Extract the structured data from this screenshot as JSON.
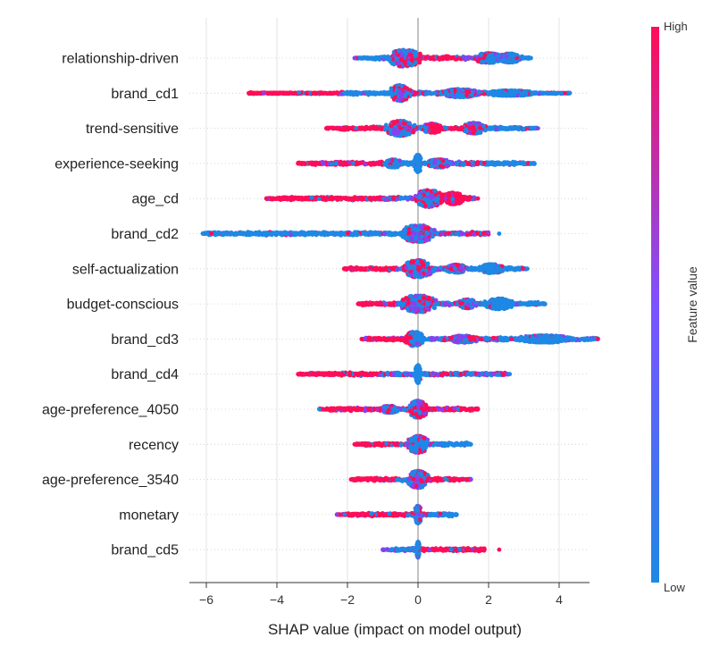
{
  "chart_data": {
    "type": "scatter",
    "xlabel": "SHAP value (impact on model output)",
    "xlim": [
      -6.5,
      5.4
    ],
    "xticks": [
      -6,
      -4,
      -2,
      0,
      2,
      4
    ],
    "grid": true,
    "colorbar": {
      "label": "Feature value",
      "high_label": "High",
      "low_label": "Low",
      "low_color": "#1E88E5",
      "high_color": "#FF0D57"
    },
    "features": [
      {
        "name": "relationship-driven",
        "min": -1.8,
        "max": 3.2,
        "core_left": -1.3,
        "core_right": 3.0,
        "segments": [
          [
            -1.8,
            -0.8,
            "blue"
          ],
          [
            -0.8,
            -0.1,
            "mix"
          ],
          [
            0.0,
            1.1,
            "pink"
          ],
          [
            1.1,
            1.8,
            "mix"
          ],
          [
            1.8,
            3.2,
            "blue"
          ]
        ],
        "blobs": [
          [
            -0.4,
            0.55,
            19
          ],
          [
            2.0,
            0.45,
            11
          ],
          [
            2.6,
            0.35,
            10
          ]
        ]
      },
      {
        "name": "brand_cd1",
        "min": -4.8,
        "max": 4.3,
        "core_left": -2.3,
        "core_right": 3.2,
        "segments": [
          [
            -4.8,
            -2.1,
            "pink"
          ],
          [
            -2.1,
            -0.7,
            "blue"
          ],
          [
            -0.7,
            0.6,
            "mix"
          ],
          [
            0.6,
            1.9,
            "mix"
          ],
          [
            1.9,
            4.3,
            "blue"
          ]
        ],
        "blobs": [
          [
            -0.5,
            0.35,
            18
          ],
          [
            1.2,
            0.6,
            9
          ],
          [
            2.6,
            0.8,
            6
          ]
        ]
      },
      {
        "name": "trend-sensitive",
        "min": -2.6,
        "max": 3.4,
        "core_left": -2.2,
        "core_right": 3.0,
        "segments": [
          [
            -2.6,
            -1.1,
            "pink"
          ],
          [
            -1.1,
            0.3,
            "mix"
          ],
          [
            0.3,
            1.3,
            "pink"
          ],
          [
            1.3,
            2.0,
            "mix"
          ],
          [
            2.0,
            3.4,
            "blue"
          ]
        ],
        "blobs": [
          [
            -0.5,
            0.45,
            17
          ],
          [
            0.4,
            0.35,
            10
          ],
          [
            1.6,
            0.4,
            12
          ]
        ]
      },
      {
        "name": "experience-seeking",
        "min": -3.4,
        "max": 3.3,
        "core_left": -3.1,
        "core_right": 3.0,
        "segments": [
          [
            -3.4,
            -1.0,
            "pink"
          ],
          [
            -1.0,
            -0.2,
            "blue"
          ],
          [
            -0.2,
            0.2,
            "blue"
          ],
          [
            0.3,
            1.8,
            "mix"
          ],
          [
            1.8,
            3.3,
            "blue"
          ]
        ],
        "blobs": [
          [
            0.0,
            0.12,
            20
          ],
          [
            -0.7,
            0.3,
            9
          ],
          [
            0.6,
            0.4,
            9
          ]
        ]
      },
      {
        "name": "age_cd",
        "min": -4.3,
        "max": 1.7,
        "core_left": -4.0,
        "core_right": 1.6,
        "segments": [
          [
            -4.3,
            -1.0,
            "pink"
          ],
          [
            -1.0,
            -0.1,
            "mix"
          ],
          [
            -0.1,
            0.6,
            "mix"
          ],
          [
            0.6,
            1.7,
            "pink"
          ]
        ],
        "blobs": [
          [
            0.3,
            0.45,
            19
          ],
          [
            1.0,
            0.35,
            13
          ]
        ]
      },
      {
        "name": "brand_cd2",
        "min": -6.1,
        "max": 2.3,
        "core_left": -6.0,
        "core_right": 2.0,
        "segments": [
          [
            -6.1,
            -1.4,
            "blue"
          ],
          [
            -1.4,
            -0.3,
            "blue"
          ],
          [
            -0.3,
            0.6,
            "mix"
          ],
          [
            0.6,
            2.0,
            "mix"
          ]
        ],
        "blobs": [
          [
            0.0,
            0.55,
            19
          ]
        ]
      },
      {
        "name": "self-actualization",
        "min": -2.1,
        "max": 3.1,
        "core_left": -2.0,
        "core_right": 3.0,
        "segments": [
          [
            -2.1,
            -0.6,
            "pink"
          ],
          [
            -0.6,
            0.4,
            "mix"
          ],
          [
            0.4,
            1.5,
            "mix"
          ],
          [
            1.5,
            3.1,
            "blue"
          ]
        ],
        "blobs": [
          [
            0.0,
            0.5,
            19
          ],
          [
            1.1,
            0.35,
            9
          ],
          [
            2.1,
            0.4,
            10
          ]
        ]
      },
      {
        "name": "budget-conscious",
        "min": -1.7,
        "max": 3.6,
        "core_left": -1.6,
        "core_right": 3.5,
        "segments": [
          [
            -1.7,
            -0.6,
            "pink"
          ],
          [
            -0.6,
            0.3,
            "mix"
          ],
          [
            0.3,
            1.7,
            "mix"
          ],
          [
            1.7,
            3.6,
            "blue"
          ]
        ],
        "blobs": [
          [
            0.0,
            0.6,
            19
          ],
          [
            1.4,
            0.3,
            10
          ],
          [
            2.3,
            0.45,
            12
          ]
        ]
      },
      {
        "name": "brand_cd3",
        "min": -1.6,
        "max": 5.1,
        "core_left": -1.5,
        "core_right": 5.0,
        "segments": [
          [
            -1.6,
            -0.2,
            "pink"
          ],
          [
            -0.2,
            0.3,
            "blue"
          ],
          [
            0.3,
            2.3,
            "mix"
          ],
          [
            2.3,
            5.1,
            "blue"
          ]
        ],
        "blobs": [
          [
            -0.1,
            0.3,
            16
          ],
          [
            1.3,
            0.5,
            8
          ],
          [
            3.6,
            0.9,
            8
          ]
        ]
      },
      {
        "name": "brand_cd4",
        "min": -3.4,
        "max": 2.6,
        "core_left": -3.1,
        "core_right": 2.5,
        "segments": [
          [
            -3.4,
            -1.0,
            "pink"
          ],
          [
            -1.0,
            -0.2,
            "mix"
          ],
          [
            -0.2,
            0.2,
            "blue"
          ],
          [
            0.2,
            2.6,
            "mix"
          ]
        ],
        "blobs": [
          [
            0.0,
            0.1,
            20
          ]
        ]
      },
      {
        "name": "age-preference_4050",
        "min": -2.8,
        "max": 1.7,
        "core_left": -2.6,
        "core_right": 1.6,
        "segments": [
          [
            -2.8,
            -1.0,
            "pink"
          ],
          [
            -1.0,
            0.1,
            "mix"
          ],
          [
            0.1,
            1.7,
            "pink"
          ]
        ],
        "blobs": [
          [
            0.0,
            0.3,
            19
          ],
          [
            -0.8,
            0.3,
            8
          ]
        ]
      },
      {
        "name": "recency",
        "min": -1.8,
        "max": 1.5,
        "core_left": -1.6,
        "core_right": 1.4,
        "segments": [
          [
            -1.8,
            -0.5,
            "pink"
          ],
          [
            -0.5,
            0.4,
            "mix"
          ],
          [
            0.4,
            1.5,
            "blue"
          ]
        ],
        "blobs": [
          [
            0.0,
            0.35,
            19
          ]
        ]
      },
      {
        "name": "age-preference_3540",
        "min": -1.9,
        "max": 1.5,
        "core_left": -1.8,
        "core_right": 1.2,
        "segments": [
          [
            -1.9,
            -0.6,
            "pink"
          ],
          [
            -0.6,
            0.3,
            "mix"
          ],
          [
            0.3,
            1.5,
            "pink"
          ]
        ],
        "blobs": [
          [
            0.0,
            0.35,
            19
          ]
        ]
      },
      {
        "name": "monetary",
        "min": -2.3,
        "max": 1.1,
        "core_left": -2.1,
        "core_right": 1.0,
        "segments": [
          [
            -2.3,
            -0.3,
            "pink"
          ],
          [
            -0.3,
            0.3,
            "mix"
          ],
          [
            0.3,
            1.1,
            "blue"
          ]
        ],
        "blobs": [
          [
            0.0,
            0.12,
            20
          ]
        ]
      },
      {
        "name": "brand_cd5",
        "min": -1.0,
        "max": 2.3,
        "core_left": -0.8,
        "core_right": 1.9,
        "segments": [
          [
            -1.0,
            -0.1,
            "mix"
          ],
          [
            -0.1,
            0.1,
            "blue"
          ],
          [
            0.1,
            1.9,
            "pink"
          ]
        ],
        "blobs": [
          [
            0.0,
            0.05,
            18
          ]
        ]
      }
    ]
  }
}
